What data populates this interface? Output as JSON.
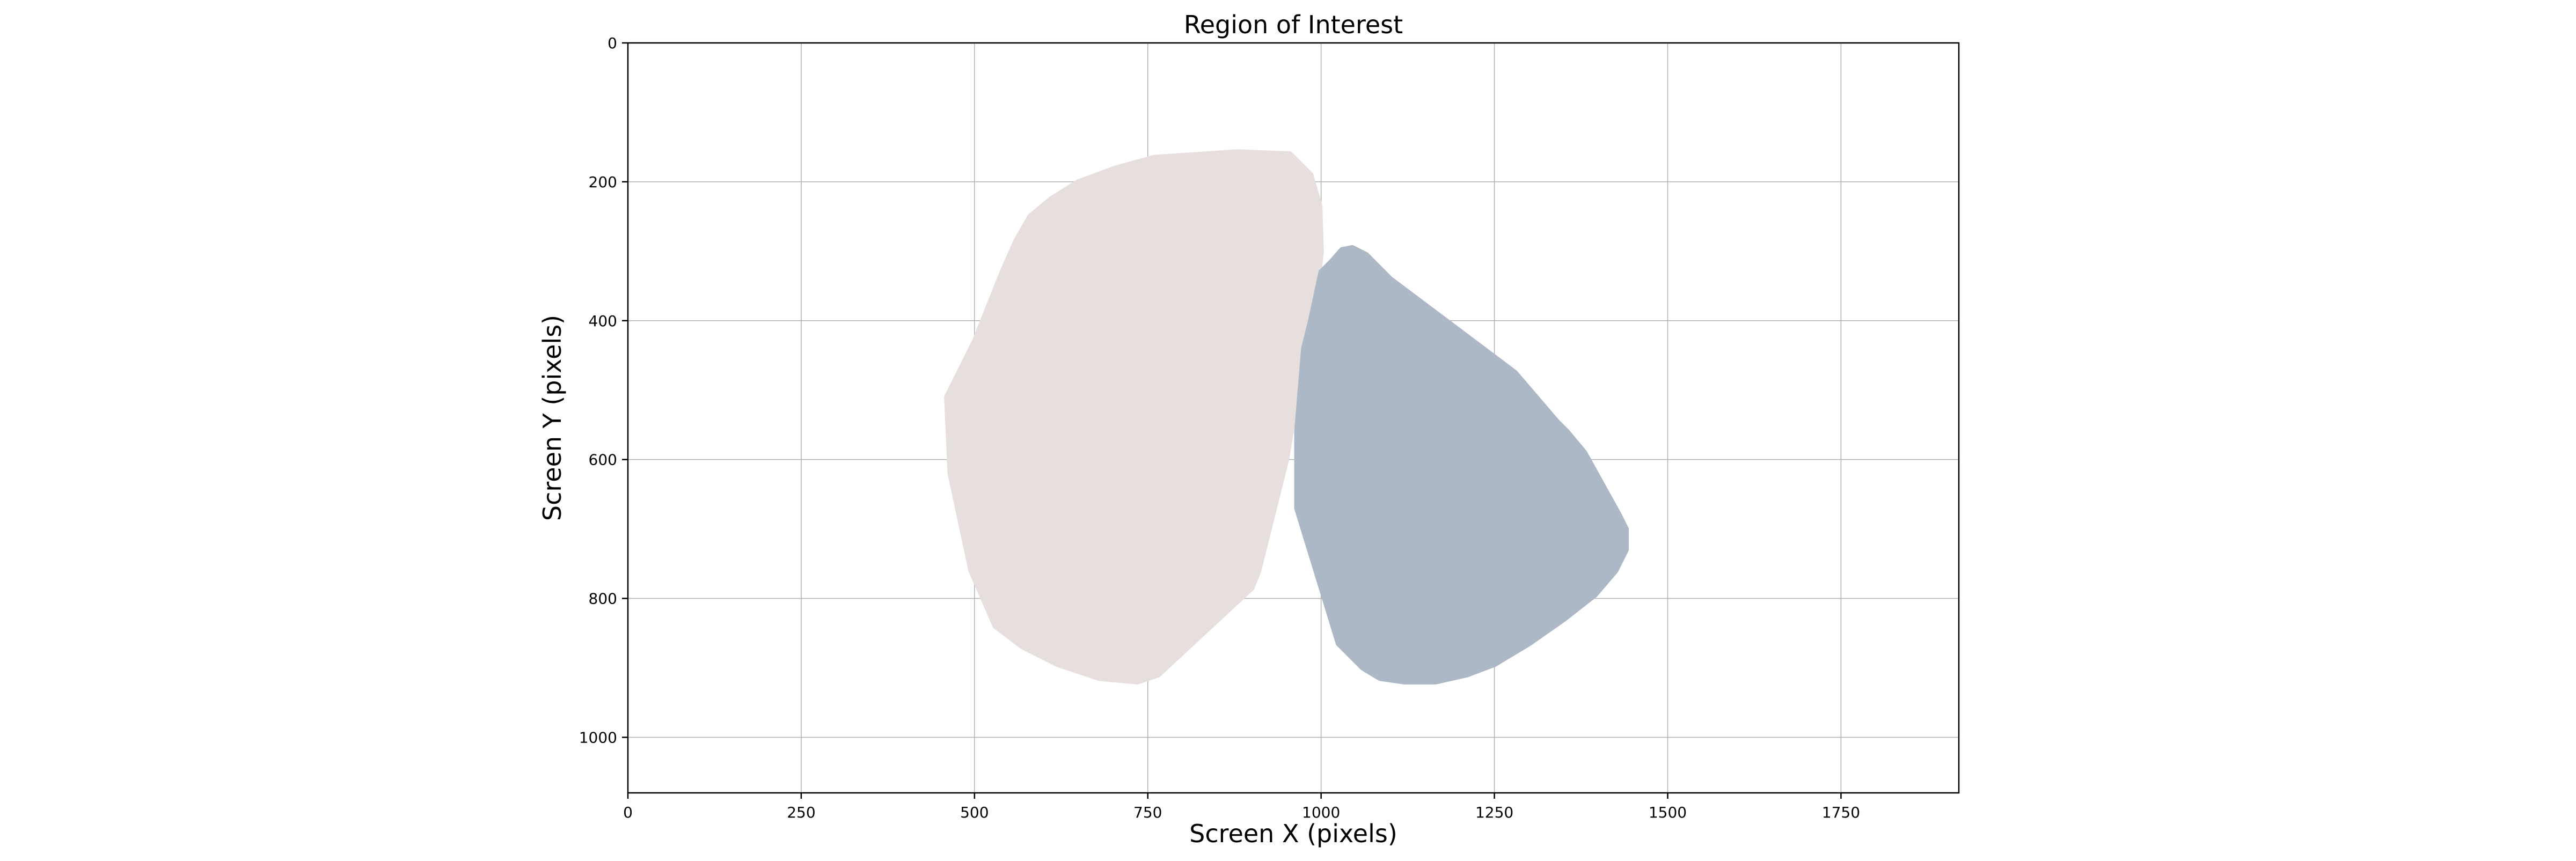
{
  "chart_data": {
    "type": "area",
    "title": "Region of Interest",
    "xlabel": "Screen X (pixels)",
    "ylabel": "Screen Y (pixels)",
    "xlim": [
      0,
      1920
    ],
    "ylim": [
      1080,
      0
    ],
    "y_inverted": true,
    "grid": true,
    "x_ticks": [
      0,
      250,
      500,
      750,
      1000,
      1250,
      1500,
      1750
    ],
    "y_ticks": [
      0,
      200,
      400,
      600,
      800,
      1000
    ],
    "colors": {
      "left_region": "#e6dfde",
      "right_region": "#acb8c5",
      "grid": "#b0b0b0",
      "axes": "#000000"
    },
    "series": [
      {
        "color": "#e6dfde",
        "points": [
          [
            460,
            510
          ],
          [
            465,
            620
          ],
          [
            495,
            760
          ],
          [
            530,
            840
          ],
          [
            570,
            870
          ],
          [
            620,
            895
          ],
          [
            680,
            915
          ],
          [
            735,
            920
          ],
          [
            765,
            910
          ],
          [
            900,
            785
          ],
          [
            910,
            760
          ],
          [
            925,
            700
          ],
          [
            950,
            600
          ],
          [
            970,
            480
          ],
          [
            985,
            400
          ],
          [
            995,
            350
          ],
          [
            1000,
            300
          ],
          [
            998,
            235
          ],
          [
            985,
            190
          ],
          [
            955,
            160
          ],
          [
            880,
            157
          ],
          [
            760,
            165
          ],
          [
            705,
            180
          ],
          [
            650,
            200
          ],
          [
            610,
            225
          ],
          [
            580,
            250
          ],
          [
            560,
            285
          ],
          [
            540,
            330
          ],
          [
            500,
            430
          ]
        ]
      },
      {
        "color": "#acb8c5",
        "points": [
          [
            965,
            670
          ],
          [
            1025,
            865
          ],
          [
            1060,
            900
          ],
          [
            1085,
            915
          ],
          [
            1120,
            920
          ],
          [
            1165,
            920
          ],
          [
            1210,
            910
          ],
          [
            1250,
            895
          ],
          [
            1300,
            865
          ],
          [
            1350,
            830
          ],
          [
            1395,
            795
          ],
          [
            1425,
            760
          ],
          [
            1440,
            730
          ],
          [
            1440,
            700
          ],
          [
            1430,
            680
          ],
          [
            1380,
            590
          ],
          [
            1355,
            560
          ],
          [
            1340,
            545
          ],
          [
            1280,
            475
          ],
          [
            1260,
            460
          ],
          [
            1180,
            400
          ],
          [
            1100,
            340
          ],
          [
            1065,
            305
          ],
          [
            1045,
            295
          ],
          [
            1030,
            298
          ],
          [
            1015,
            315
          ],
          [
            1000,
            330
          ],
          [
            985,
            400
          ],
          [
            975,
            440
          ],
          [
            965,
            560
          ]
        ]
      }
    ]
  }
}
